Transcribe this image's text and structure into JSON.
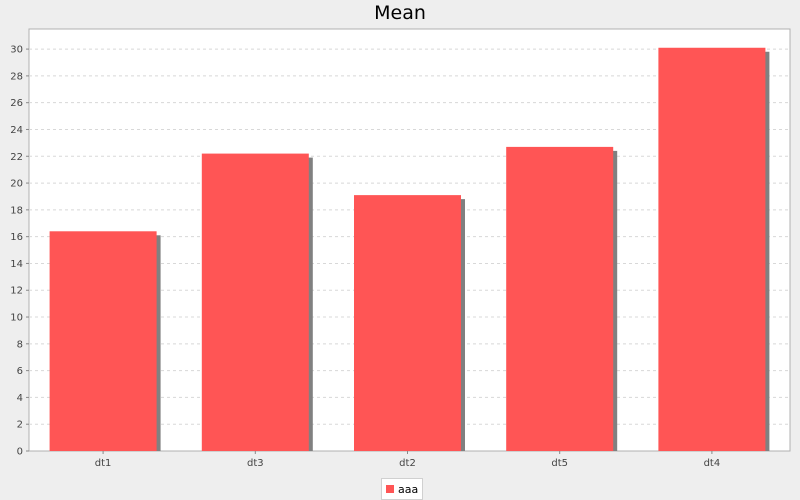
{
  "chart_data": {
    "type": "bar",
    "title": "Mean",
    "xlabel": "",
    "ylabel": "",
    "categories": [
      "dt1",
      "dt3",
      "dt2",
      "dt5",
      "dt4"
    ],
    "series": [
      {
        "name": "aaa",
        "values": [
          16.4,
          22.2,
          19.1,
          22.7,
          30.1
        ]
      }
    ],
    "ylim": [
      0,
      31.5
    ],
    "yticks": [
      0,
      2,
      4,
      6,
      8,
      10,
      12,
      14,
      16,
      18,
      20,
      22,
      24,
      26,
      28,
      30
    ],
    "grid": true,
    "legend_position": "bottom",
    "colors": {
      "bar": "#ff5555",
      "shadow": "#808080",
      "plot_background": "#ffffff",
      "outer_background": "#eeeeee",
      "grid": "#d8d8d8"
    }
  }
}
